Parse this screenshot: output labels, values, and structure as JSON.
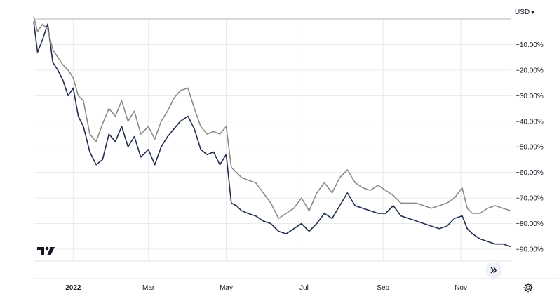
{
  "currency": {
    "label": "USD",
    "icon": "chevron-down-icon"
  },
  "controls": {
    "scroll_icon": "double-chevron-right-icon",
    "settings_icon": "gear-icon",
    "logo_icon": "tradingview-logo-icon"
  },
  "chart_data": {
    "type": "line",
    "title": "",
    "xlabel": "",
    "ylabel": "",
    "x_start": "2021-12-01",
    "x_end": "2022-12-10",
    "ylim": [
      -95,
      5
    ],
    "y_ticks": [
      -10,
      -20,
      -30,
      -40,
      -50,
      -60,
      -70,
      -80,
      -90
    ],
    "y_tick_labels": [
      "−10.00%",
      "−20.00%",
      "−30.00%",
      "−40.00%",
      "−50.00%",
      "−60.00%",
      "−70.00%",
      "−80.00%",
      "−90.00%"
    ],
    "x_ticks": [
      {
        "date": "2022-01-01",
        "label": "2022"
      },
      {
        "date": "2022-03-01",
        "label": "Mar"
      },
      {
        "date": "2022-05-01",
        "label": "May"
      },
      {
        "date": "2022-07-01",
        "label": "Jul"
      },
      {
        "date": "2022-09-01",
        "label": "Sep"
      },
      {
        "date": "2022-11-01",
        "label": "Nov"
      }
    ],
    "grid": true,
    "series": [
      {
        "color": "#1f2d4d",
        "x": [
          "2021-12-01",
          "2021-12-04",
          "2021-12-08",
          "2021-12-12",
          "2021-12-16",
          "2021-12-20",
          "2021-12-24",
          "2021-12-28",
          "2022-01-01",
          "2022-01-05",
          "2022-01-09",
          "2022-01-14",
          "2022-01-19",
          "2022-01-24",
          "2022-01-29",
          "2022-02-03",
          "2022-02-08",
          "2022-02-13",
          "2022-02-18",
          "2022-02-23",
          "2022-03-01",
          "2022-03-06",
          "2022-03-11",
          "2022-03-16",
          "2022-03-21",
          "2022-03-26",
          "2022-04-01",
          "2022-04-06",
          "2022-04-11",
          "2022-04-16",
          "2022-04-21",
          "2022-04-26",
          "2022-05-01",
          "2022-05-05",
          "2022-05-09",
          "2022-05-13",
          "2022-05-18",
          "2022-05-24",
          "2022-05-30",
          "2022-06-05",
          "2022-06-11",
          "2022-06-17",
          "2022-06-23",
          "2022-06-29",
          "2022-07-05",
          "2022-07-11",
          "2022-07-17",
          "2022-07-23",
          "2022-07-29",
          "2022-08-04",
          "2022-08-10",
          "2022-08-16",
          "2022-08-22",
          "2022-08-28",
          "2022-09-03",
          "2022-09-09",
          "2022-09-15",
          "2022-09-21",
          "2022-09-27",
          "2022-10-03",
          "2022-10-09",
          "2022-10-15",
          "2022-10-21",
          "2022-10-27",
          "2022-11-02",
          "2022-11-06",
          "2022-11-10",
          "2022-11-16",
          "2022-11-22",
          "2022-11-28",
          "2022-12-04",
          "2022-12-10"
        ],
        "values": [
          -1,
          -13,
          -8,
          -2,
          -17,
          -20,
          -24,
          -30,
          -27,
          -38,
          -42,
          -52,
          -57,
          -55,
          -45,
          -48,
          -42,
          -50,
          -46,
          -54,
          -51,
          -57,
          -50,
          -46,
          -43,
          -40,
          -38,
          -43,
          -51,
          -53,
          -52,
          -57,
          -53,
          -72,
          -73,
          -75,
          -76,
          -77,
          -79,
          -80,
          -83,
          -84,
          -82,
          -80,
          -83,
          -80,
          -76,
          -78,
          -73,
          -68,
          -73,
          -74,
          -75,
          -76,
          -76,
          -73,
          -77,
          -78,
          -79,
          -80,
          -81,
          -82,
          -81,
          -78,
          -77,
          -82,
          -84,
          -86,
          -87,
          -88,
          -88,
          -89
        ]
      },
      {
        "color": "#8c8c84",
        "x": [
          "2021-12-01",
          "2021-12-04",
          "2021-12-08",
          "2021-12-12",
          "2021-12-16",
          "2021-12-20",
          "2021-12-24",
          "2021-12-28",
          "2022-01-01",
          "2022-01-05",
          "2022-01-09",
          "2022-01-14",
          "2022-01-19",
          "2022-01-24",
          "2022-01-29",
          "2022-02-03",
          "2022-02-08",
          "2022-02-13",
          "2022-02-18",
          "2022-02-23",
          "2022-03-01",
          "2022-03-06",
          "2022-03-11",
          "2022-03-16",
          "2022-03-21",
          "2022-03-26",
          "2022-04-01",
          "2022-04-06",
          "2022-04-11",
          "2022-04-16",
          "2022-04-21",
          "2022-04-26",
          "2022-05-01",
          "2022-05-05",
          "2022-05-09",
          "2022-05-13",
          "2022-05-18",
          "2022-05-24",
          "2022-05-30",
          "2022-06-05",
          "2022-06-11",
          "2022-06-17",
          "2022-06-23",
          "2022-06-29",
          "2022-07-05",
          "2022-07-11",
          "2022-07-17",
          "2022-07-23",
          "2022-07-29",
          "2022-08-04",
          "2022-08-10",
          "2022-08-16",
          "2022-08-22",
          "2022-08-28",
          "2022-09-03",
          "2022-09-09",
          "2022-09-15",
          "2022-09-21",
          "2022-09-27",
          "2022-10-03",
          "2022-10-09",
          "2022-10-15",
          "2022-10-21",
          "2022-10-27",
          "2022-11-02",
          "2022-11-06",
          "2022-11-10",
          "2022-11-16",
          "2022-11-22",
          "2022-11-28",
          "2022-12-04",
          "2022-12-10"
        ],
        "values": [
          1,
          -5,
          -2,
          -4,
          -12,
          -15,
          -18,
          -20,
          -23,
          -30,
          -32,
          -45,
          -48,
          -41,
          -35,
          -38,
          -32,
          -40,
          -36,
          -45,
          -42,
          -47,
          -40,
          -36,
          -31,
          -28,
          -27,
          -35,
          -42,
          -45,
          -44,
          -45,
          -42,
          -58,
          -60,
          -62,
          -63,
          -64,
          -68,
          -72,
          -78,
          -76,
          -74,
          -70,
          -75,
          -68,
          -64,
          -68,
          -62,
          -59,
          -64,
          -66,
          -67,
          -65,
          -67,
          -69,
          -72,
          -72,
          -72,
          -73,
          -74,
          -73,
          -72,
          -70,
          -66,
          -74,
          -76,
          -76,
          -74,
          -73,
          -74,
          -75
        ]
      }
    ]
  }
}
